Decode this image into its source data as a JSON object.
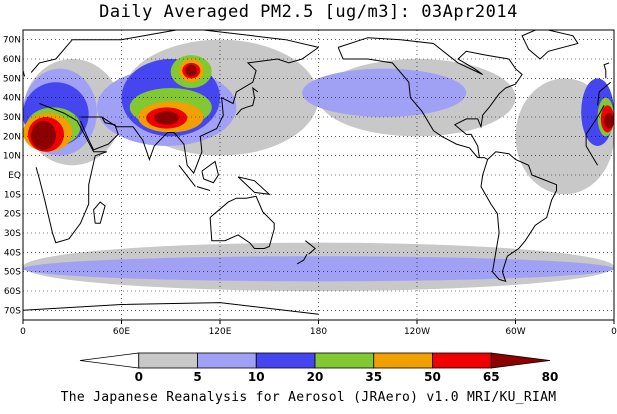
{
  "title": "Daily Averaged PM2.5 [ug/m3]: 03Apr2014",
  "footer": "The Japanese Reanalysis for Aerosol (JRAero) v1.0 MRI/KU_RIAM",
  "map": {
    "lat_labels": [
      "70N",
      "60N",
      "50N",
      "40N",
      "30N",
      "20N",
      "10N",
      "EQ",
      "10S",
      "20S",
      "30S",
      "40S",
      "50S",
      "60S",
      "70S"
    ],
    "lat_values": [
      70,
      60,
      50,
      40,
      30,
      20,
      10,
      0,
      -10,
      -20,
      -30,
      -40,
      -50,
      -60,
      -70
    ],
    "lon_labels": [
      "0",
      "60E",
      "120E",
      "180",
      "120W",
      "60W",
      "0"
    ],
    "lon_values": [
      0,
      60,
      120,
      180,
      240,
      300,
      360
    ],
    "lat_range": [
      -75,
      75
    ],
    "lon_range": [
      0,
      360
    ]
  },
  "colorbar": {
    "levels": [
      "0",
      "5",
      "10",
      "20",
      "35",
      "50",
      "65",
      "80"
    ],
    "colors": [
      "#ffffff",
      "#c8c8c8",
      "#a0a0f5",
      "#4646f0",
      "#82c832",
      "#f0a000",
      "#f00000",
      "#8c0000"
    ]
  },
  "field_regions": [
    {
      "level": 1,
      "lon": [
        0,
        60
      ],
      "lat": [
        5,
        60
      ]
    },
    {
      "level": 1,
      "lon": [
        60,
        180
      ],
      "lat": [
        10,
        70
      ]
    },
    {
      "level": 1,
      "lon": [
        180,
        300
      ],
      "lat": [
        20,
        60
      ]
    },
    {
      "level": 1,
      "lon": [
        300,
        360
      ],
      "lat": [
        -10,
        50
      ]
    },
    {
      "level": 1,
      "lon": [
        0,
        360
      ],
      "lat": [
        -60,
        -35
      ]
    },
    {
      "level": 2,
      "lon": [
        0,
        45
      ],
      "lat": [
        10,
        55
      ]
    },
    {
      "level": 2,
      "lon": [
        45,
        130
      ],
      "lat": [
        15,
        55
      ]
    },
    {
      "level": 2,
      "lon": [
        170,
        270
      ],
      "lat": [
        30,
        55
      ]
    },
    {
      "level": 2,
      "lon": [
        0,
        360
      ],
      "lat": [
        -55,
        -42
      ]
    },
    {
      "level": 3,
      "lon": [
        0,
        40
      ],
      "lat": [
        15,
        48
      ]
    },
    {
      "level": 3,
      "lon": [
        60,
        120
      ],
      "lat": [
        20,
        60
      ]
    },
    {
      "level": 3,
      "lon": [
        340,
        360
      ],
      "lat": [
        15,
        50
      ]
    },
    {
      "level": 4,
      "lon": [
        2,
        35
      ],
      "lat": [
        15,
        35
      ]
    },
    {
      "level": 4,
      "lon": [
        65,
        115
      ],
      "lat": [
        25,
        45
      ]
    },
    {
      "level": 4,
      "lon": [
        90,
        115
      ],
      "lat": [
        45,
        62
      ]
    },
    {
      "level": 5,
      "lon": [
        0,
        30
      ],
      "lat": [
        12,
        32
      ]
    },
    {
      "level": 5,
      "lon": [
        70,
        110
      ],
      "lat": [
        22,
        38
      ]
    },
    {
      "level": 5,
      "lon": [
        95,
        110
      ],
      "lat": [
        48,
        60
      ]
    },
    {
      "level": 6,
      "lon": [
        3,
        25
      ],
      "lat": [
        12,
        30
      ]
    },
    {
      "level": 6,
      "lon": [
        75,
        100
      ],
      "lat": [
        24,
        35
      ]
    },
    {
      "level": 6,
      "lon": [
        97,
        108
      ],
      "lat": [
        50,
        58
      ]
    },
    {
      "level": 7,
      "lon": [
        5,
        20
      ],
      "lat": [
        13,
        28
      ]
    },
    {
      "level": 7,
      "lon": [
        80,
        95
      ],
      "lat": [
        26,
        33
      ]
    },
    {
      "level": 7,
      "lon": [
        99,
        106
      ],
      "lat": [
        51,
        57
      ]
    },
    {
      "level": 4,
      "lon": [
        350,
        360
      ],
      "lat": [
        20,
        40
      ]
    },
    {
      "level": 6,
      "lon": [
        352,
        360
      ],
      "lat": [
        22,
        36
      ]
    },
    {
      "level": 7,
      "lon": [
        354,
        360
      ],
      "lat": [
        24,
        32
      ]
    }
  ]
}
